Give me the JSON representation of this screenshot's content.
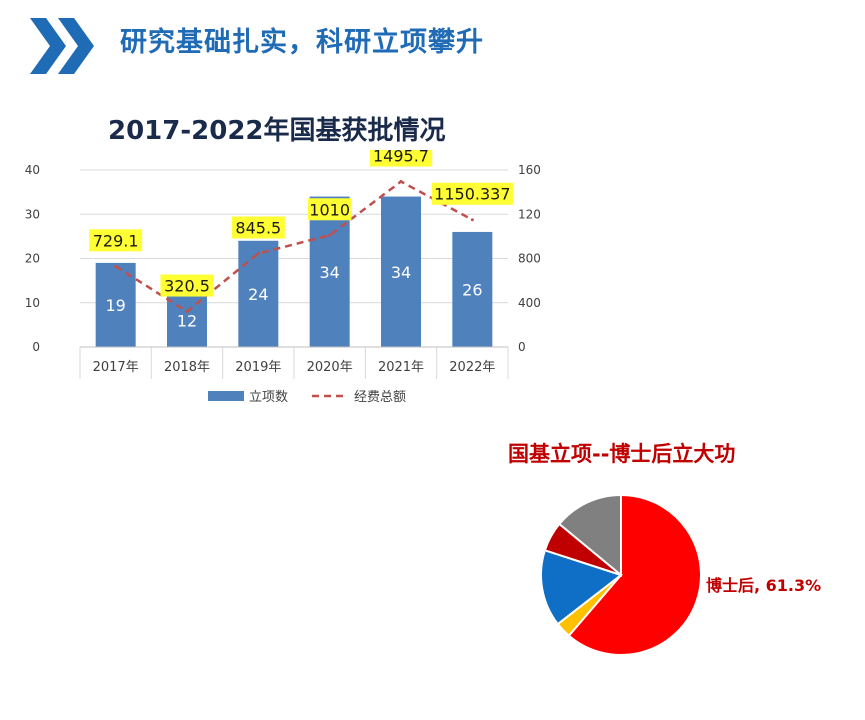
{
  "header": {
    "title": "研究基础扎实，科研立项攀升",
    "chevron_color": "#1f6bb5"
  },
  "chart_data": [
    {
      "type": "bar",
      "title": "2017-2022年国基获批情况",
      "categories": [
        "2017年",
        "2018年",
        "2019年",
        "2020年",
        "2021年",
        "2022年"
      ],
      "series": [
        {
          "name": "立项数",
          "kind": "bar",
          "axis": "left",
          "color": "#4f81bd",
          "values": [
            19,
            12,
            24,
            34,
            34,
            26
          ],
          "data_labels": [
            "19",
            "12",
            "24",
            "34",
            "34",
            "26"
          ]
        },
        {
          "name": "经费总额",
          "kind": "line",
          "style": "dashed",
          "axis": "right",
          "color": "#c0504d",
          "values": [
            729.1,
            320.5,
            845.5,
            1010,
            1495.7,
            1150.337
          ],
          "data_labels": [
            "729.1",
            "320.5",
            "845.5",
            "1010",
            "1495.7",
            "1150.337"
          ]
        }
      ],
      "y_left": {
        "ylim": [
          0,
          40
        ],
        "ticks": [
          "0",
          "10",
          "20",
          "30",
          "40"
        ]
      },
      "y_right": {
        "ylim": [
          0,
          1600
        ],
        "ticks": [
          "0",
          "400",
          "800",
          "1200",
          "1600"
        ]
      },
      "grid": true,
      "legend": "bottom",
      "label_highlight_color": "#ffff33"
    },
    {
      "type": "pie",
      "title": "国基立项--博士后立大功",
      "slices": [
        {
          "label": "博士后",
          "value": 61.3,
          "color": "#ff0000",
          "shown_label": "博士后, 61.3%"
        },
        {
          "value": 3.2,
          "color": "#ffc000"
        },
        {
          "value": 15.5,
          "color": "#0f6fc6"
        },
        {
          "value": 6.0,
          "color": "#c00000"
        },
        {
          "value": 14.0,
          "color": "#808080"
        }
      ],
      "start_angle_deg": 0,
      "direction": "clockwise"
    }
  ]
}
